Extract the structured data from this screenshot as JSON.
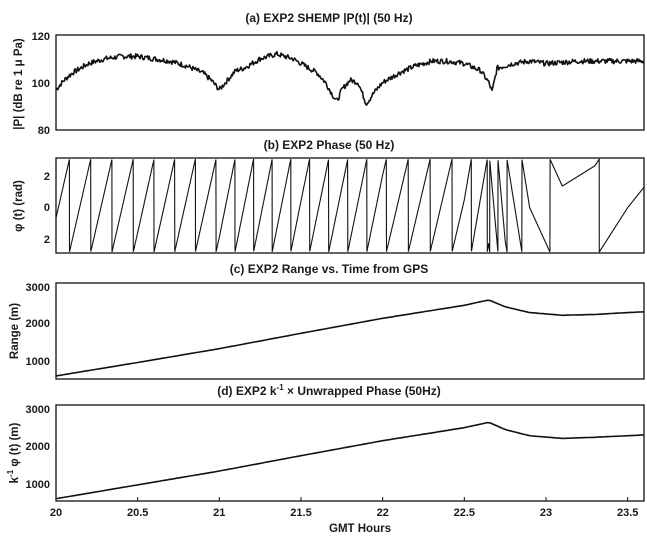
{
  "chart_data": [
    {
      "type": "line",
      "title": "(a)    EXP2 SHEMP |P(t)| (50 Hz)",
      "ylabel": "|P| (dB re 1 μ Pa)",
      "ylim": [
        80,
        120
      ],
      "yticks": [
        "80",
        "100",
        "120"
      ],
      "xlim": [
        20,
        23.6
      ],
      "series": [
        {
          "x": [
            20.0,
            20.05,
            20.1,
            20.2,
            20.3,
            20.4,
            20.5,
            20.6,
            20.7,
            20.8,
            20.9,
            20.95,
            21.0,
            21.05,
            21.1,
            21.15,
            21.2,
            21.25,
            21.3,
            21.35,
            21.4,
            21.45,
            21.5,
            21.55,
            21.6,
            21.65,
            21.7,
            21.72,
            21.75,
            21.8,
            21.85,
            21.9,
            21.95,
            22.0,
            22.1,
            22.2,
            22.3,
            22.4,
            22.5,
            22.6,
            22.65,
            22.67,
            22.7,
            22.8,
            22.9,
            23.0,
            23.2,
            23.4,
            23.6
          ],
          "values": [
            97,
            101,
            104,
            108,
            110,
            111,
            111,
            110,
            109,
            107,
            104,
            101,
            97,
            101,
            105,
            106,
            108,
            110,
            111,
            112,
            111,
            110,
            108,
            106,
            104,
            100,
            94,
            92,
            97,
            101,
            100,
            91,
            96,
            100,
            104,
            107,
            109,
            109,
            108,
            105,
            100,
            96,
            106,
            108,
            109,
            108,
            109,
            109,
            109
          ]
        }
      ]
    },
    {
      "type": "line",
      "title": "(b)    EXP2 Phase (50 Hz)",
      "ylabel": "φ (t) (rad)",
      "ylim": [
        -3.14,
        3.14
      ],
      "yticks": [
        "2",
        "0",
        "2"
      ]
    },
    {
      "type": "line",
      "title": "(c)    EXP2 Range vs. Time from GPS",
      "ylabel": "Range (m)",
      "ylim": [
        500,
        3000
      ],
      "yticks": [
        "1000",
        "2000",
        "3000"
      ],
      "xlim": [
        20,
        23.6
      ],
      "series": [
        {
          "x": [
            20.0,
            20.5,
            21.0,
            21.5,
            22.0,
            22.5,
            22.65,
            22.75,
            22.9,
            23.1,
            23.3,
            23.5,
            23.6
          ],
          "values": [
            580,
            930,
            1290,
            1690,
            2080,
            2420,
            2560,
            2380,
            2230,
            2160,
            2180,
            2230,
            2250
          ]
        }
      ]
    },
    {
      "type": "line",
      "title": "(d)    EXP2 k",
      "title_sup": "-1",
      "title_rest": " × Unwrapped Phase (50Hz)",
      "ylabel": "k",
      "ylabel_sup": "-1",
      "ylabel_rest": " φ (t) (m)",
      "ylim": [
        500,
        3000
      ],
      "yticks": [
        "1000",
        "2000",
        "3000"
      ],
      "xlim": [
        20,
        23.6
      ],
      "xticks": [
        "20",
        "20.5",
        "21",
        "21.5",
        "22",
        "22.5",
        "23",
        "23.5"
      ],
      "xlabel": "GMT Hours",
      "series": [
        {
          "x": [
            20.0,
            20.5,
            21.0,
            21.5,
            22.0,
            22.5,
            22.65,
            22.75,
            22.9,
            23.1,
            23.3,
            23.5,
            23.6
          ],
          "values": [
            560,
            920,
            1280,
            1680,
            2070,
            2410,
            2550,
            2360,
            2200,
            2130,
            2160,
            2200,
            2220
          ]
        }
      ]
    }
  ]
}
